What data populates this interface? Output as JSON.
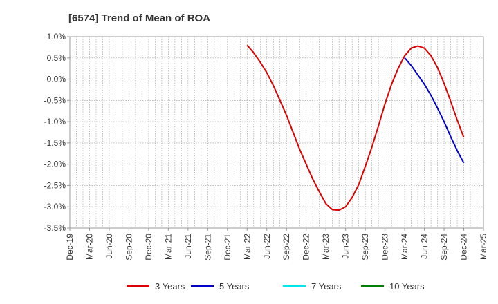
{
  "chart_data": {
    "type": "line",
    "title": "[6574]  Trend of Mean of ROA",
    "xlabel": "",
    "ylabel": "",
    "x_ticks": [
      "Dec-19",
      "Mar-20",
      "Jun-20",
      "Sep-20",
      "Dec-20",
      "Mar-21",
      "Jun-21",
      "Sep-21",
      "Dec-21",
      "Mar-22",
      "Jun-22",
      "Sep-22",
      "Dec-22",
      "Mar-23",
      "Jun-23",
      "Sep-23",
      "Dec-23",
      "Mar-24",
      "Jun-24",
      "Sep-24",
      "Dec-24",
      "Mar-25"
    ],
    "y_ticks": [
      "1.0%",
      "0.5%",
      "0.0%",
      "-0.5%",
      "-1.0%",
      "-1.5%",
      "-2.0%",
      "-2.5%",
      "-3.0%",
      "-3.5%"
    ],
    "ylim": [
      -3.5,
      1.0
    ],
    "grid": "dotted",
    "legend_position": "bottom",
    "series": [
      {
        "name": "3 Years",
        "color": "#dd0000",
        "points": [
          [
            "Mar-22",
            0.8
          ],
          [
            "Apr-22",
            0.62
          ],
          [
            "May-22",
            0.4
          ],
          [
            "Jun-22",
            0.15
          ],
          [
            "Jul-22",
            -0.15
          ],
          [
            "Aug-22",
            -0.5
          ],
          [
            "Sep-22",
            -0.85
          ],
          [
            "Oct-22",
            -1.25
          ],
          [
            "Nov-22",
            -1.65
          ],
          [
            "Dec-22",
            -2.0
          ],
          [
            "Jan-23",
            -2.35
          ],
          [
            "Feb-23",
            -2.65
          ],
          [
            "Mar-23",
            -2.93
          ],
          [
            "Apr-23",
            -3.07
          ],
          [
            "May-23",
            -3.08
          ],
          [
            "Jun-23",
            -3.0
          ],
          [
            "Jul-23",
            -2.78
          ],
          [
            "Aug-23",
            -2.48
          ],
          [
            "Sep-23",
            -2.05
          ],
          [
            "Oct-23",
            -1.6
          ],
          [
            "Nov-23",
            -1.1
          ],
          [
            "Dec-23",
            -0.58
          ],
          [
            "Jan-24",
            -0.12
          ],
          [
            "Feb-24",
            0.25
          ],
          [
            "Mar-24",
            0.55
          ],
          [
            "Apr-24",
            0.73
          ],
          [
            "May-24",
            0.78
          ],
          [
            "Jun-24",
            0.73
          ],
          [
            "Jul-24",
            0.55
          ],
          [
            "Aug-24",
            0.27
          ],
          [
            "Sep-24",
            -0.1
          ],
          [
            "Oct-24",
            -0.52
          ],
          [
            "Nov-24",
            -0.96
          ],
          [
            "Dec-24",
            -1.37
          ]
        ]
      },
      {
        "name": "5 Years",
        "color": "#0000cc",
        "points": [
          [
            "Mar-24",
            0.5
          ],
          [
            "Apr-24",
            0.32
          ],
          [
            "May-24",
            0.1
          ],
          [
            "Jun-24",
            -0.12
          ],
          [
            "Jul-24",
            -0.38
          ],
          [
            "Aug-24",
            -0.68
          ],
          [
            "Sep-24",
            -1.0
          ],
          [
            "Oct-24",
            -1.35
          ],
          [
            "Nov-24",
            -1.68
          ],
          [
            "Dec-24",
            -1.97
          ]
        ]
      },
      {
        "name": "7 Years",
        "color": "#00e5ee",
        "points": []
      },
      {
        "name": "10 Years",
        "color": "#008000",
        "points": []
      }
    ]
  }
}
